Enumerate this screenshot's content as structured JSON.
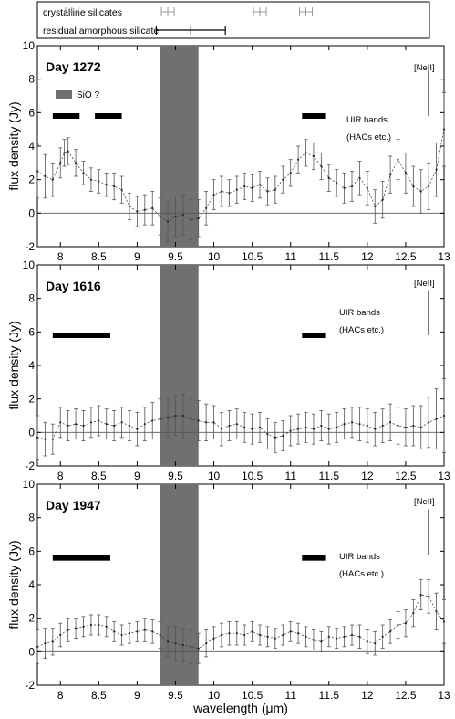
{
  "legend": {
    "crystalline_label": "crystalline silicates",
    "amorphous_label": "residual amorphous silicate",
    "crystalline_color": "#999999",
    "amorphous_color": "#000000",
    "crystalline_positions_um": [
      8.15,
      9.4,
      10.6,
      11.2
    ],
    "amorphous_range_um": [
      9.25,
      10.15
    ],
    "amorphous_center_um": 9.7
  },
  "annotations": {
    "sio_label": "SiO ?",
    "uir_label_line1": "UIR bands",
    "uir_label_line2": "(HACs etc.)",
    "neii_label": "[NeII]"
  },
  "chart_data": {
    "type": "line",
    "xlabel": "wavelength (μm)",
    "ylabel": "flux density (Jy)",
    "xlim": [
      7.7,
      13.0
    ],
    "xticks": [
      "8",
      "8.5",
      "9",
      "9.5",
      "10",
      "10.5",
      "11",
      "11.5",
      "12",
      "12.5",
      "13"
    ],
    "xtick_values": [
      8,
      8.5,
      9,
      9.5,
      10,
      10.5,
      11,
      11.5,
      12,
      12.5,
      13
    ],
    "shaded_band_um": [
      9.3,
      9.8
    ],
    "shaded_color": "#707070",
    "neii_um": 12.8,
    "panels": [
      {
        "label": "Day 1272",
        "ylim": [
          -2,
          10
        ],
        "yticks": [
          "-2",
          "0",
          "2",
          "4",
          "6",
          "8",
          "10"
        ],
        "ytick_values": [
          -2,
          0,
          2,
          4,
          6,
          8,
          10
        ],
        "show_sio_legend": true,
        "uir_bars_um": [
          [
            7.9,
            8.25
          ],
          [
            8.45,
            8.8
          ],
          [
            11.15,
            11.45
          ]
        ],
        "uir_bar_y": 5.8,
        "x": [
          7.7,
          7.8,
          7.9,
          8.0,
          8.05,
          8.1,
          8.2,
          8.3,
          8.4,
          8.5,
          8.6,
          8.7,
          8.8,
          8.9,
          9.0,
          9.1,
          9.2,
          9.3,
          9.4,
          9.5,
          9.6,
          9.7,
          9.8,
          9.9,
          10.0,
          10.1,
          10.2,
          10.3,
          10.4,
          10.5,
          10.6,
          10.7,
          10.8,
          10.9,
          11.0,
          11.1,
          11.2,
          11.3,
          11.4,
          11.5,
          11.6,
          11.7,
          11.8,
          11.9,
          12.0,
          12.1,
          12.2,
          12.3,
          12.4,
          12.5,
          12.6,
          12.7,
          12.8,
          12.9,
          13.0
        ],
        "y": [
          2.5,
          2.2,
          2.0,
          3.0,
          3.6,
          3.7,
          3.0,
          2.4,
          2.0,
          1.9,
          1.7,
          1.6,
          1.4,
          0.4,
          0.1,
          0.2,
          0.3,
          -0.2,
          -0.5,
          -0.2,
          -0.1,
          -0.4,
          -0.3,
          0.3,
          1.1,
          1.3,
          1.2,
          1.4,
          1.6,
          1.5,
          1.7,
          1.3,
          1.4,
          2.0,
          2.4,
          3.2,
          3.6,
          3.4,
          2.8,
          2.1,
          1.8,
          1.5,
          1.6,
          2.1,
          1.5,
          0.4,
          0.8,
          2.3,
          3.2,
          2.4,
          1.6,
          1.3,
          1.6,
          2.6,
          5.0
        ],
        "err": [
          1.6,
          1.3,
          1.0,
          0.9,
          0.8,
          0.8,
          0.8,
          0.7,
          0.7,
          0.7,
          0.7,
          0.8,
          0.8,
          0.8,
          0.9,
          0.9,
          1.0,
          1.1,
          1.2,
          1.2,
          1.2,
          1.2,
          1.1,
          1.0,
          0.9,
          0.9,
          0.8,
          0.8,
          0.8,
          0.8,
          0.8,
          0.8,
          0.8,
          0.8,
          0.8,
          0.8,
          0.8,
          0.8,
          0.8,
          0.8,
          0.8,
          0.9,
          0.9,
          1.0,
          1.0,
          1.0,
          1.1,
          1.1,
          1.2,
          1.2,
          1.2,
          1.3,
          1.4,
          1.6,
          2.2
        ]
      },
      {
        "label": "Day 1616",
        "ylim": [
          -2,
          10
        ],
        "yticks": [
          "-2",
          "0",
          "2",
          "4",
          "6",
          "8",
          "10"
        ],
        "ytick_values": [
          -2,
          0,
          2,
          4,
          6,
          8,
          10
        ],
        "show_sio_legend": false,
        "uir_bars_um": [
          [
            7.9,
            8.65
          ],
          [
            11.15,
            11.45
          ]
        ],
        "uir_bar_y": 5.8,
        "x": [
          7.7,
          7.8,
          7.9,
          8.0,
          8.1,
          8.2,
          8.3,
          8.4,
          8.5,
          8.6,
          8.7,
          8.8,
          8.9,
          9.0,
          9.1,
          9.2,
          9.3,
          9.4,
          9.5,
          9.6,
          9.7,
          9.8,
          9.9,
          10.0,
          10.1,
          10.2,
          10.3,
          10.4,
          10.5,
          10.6,
          10.7,
          10.8,
          10.9,
          11.0,
          11.1,
          11.2,
          11.3,
          11.4,
          11.5,
          11.6,
          11.7,
          11.8,
          11.9,
          12.0,
          12.1,
          12.2,
          12.3,
          12.4,
          12.5,
          12.6,
          12.7,
          12.8,
          12.9,
          13.0
        ],
        "y": [
          -0.3,
          -0.4,
          -0.4,
          0.6,
          0.4,
          0.5,
          0.4,
          0.6,
          0.7,
          0.5,
          0.4,
          0.6,
          0.4,
          0.2,
          0.5,
          0.7,
          0.8,
          0.9,
          1.0,
          1.0,
          0.8,
          0.7,
          0.6,
          0.6,
          0.2,
          0.4,
          0.5,
          0.3,
          0.2,
          0.3,
          -0.1,
          -0.3,
          -0.2,
          0.1,
          0.2,
          0.3,
          0.2,
          0.4,
          0.2,
          0.3,
          0.5,
          0.6,
          0.5,
          0.4,
          0.2,
          0.4,
          0.6,
          0.4,
          0.3,
          0.4,
          0.3,
          0.6,
          0.8,
          1.0
        ],
        "err": [
          1.3,
          1.0,
          0.9,
          0.9,
          0.9,
          0.9,
          0.9,
          0.9,
          0.9,
          0.9,
          0.9,
          0.9,
          0.9,
          1.0,
          1.0,
          1.1,
          1.2,
          1.2,
          1.2,
          1.3,
          1.2,
          1.2,
          1.1,
          1.0,
          1.0,
          0.9,
          0.9,
          0.9,
          0.9,
          0.9,
          0.9,
          0.9,
          0.9,
          0.9,
          0.9,
          0.9,
          0.9,
          0.9,
          0.9,
          0.9,
          0.9,
          0.9,
          1.0,
          1.0,
          1.0,
          1.0,
          1.1,
          1.1,
          1.1,
          1.2,
          1.3,
          1.5,
          1.8,
          2.2
        ]
      },
      {
        "label": "Day 1947",
        "ylim": [
          -2,
          10
        ],
        "yticks": [
          "-2",
          "0",
          "2",
          "4",
          "6",
          "8",
          "10"
        ],
        "ytick_values": [
          -2,
          0,
          2,
          4,
          6,
          8,
          10
        ],
        "show_sio_legend": false,
        "uir_bars_um": [
          [
            7.9,
            8.65
          ],
          [
            11.15,
            11.45
          ]
        ],
        "uir_bar_y": 5.6,
        "x": [
          7.7,
          7.8,
          7.9,
          8.0,
          8.1,
          8.2,
          8.3,
          8.4,
          8.5,
          8.6,
          8.7,
          8.8,
          8.9,
          9.0,
          9.1,
          9.2,
          9.3,
          9.4,
          9.5,
          9.6,
          9.7,
          9.8,
          9.9,
          10.0,
          10.1,
          10.2,
          10.3,
          10.4,
          10.5,
          10.6,
          10.7,
          10.8,
          10.9,
          11.0,
          11.1,
          11.2,
          11.3,
          11.4,
          11.5,
          11.6,
          11.7,
          11.8,
          11.9,
          12.0,
          12.1,
          12.2,
          12.3,
          12.4,
          12.5,
          12.6,
          12.7,
          12.8,
          12.9,
          13.0
        ],
        "y": [
          0.3,
          0.5,
          0.6,
          1.0,
          1.3,
          1.4,
          1.5,
          1.6,
          1.6,
          1.5,
          1.2,
          1.0,
          1.1,
          1.2,
          1.3,
          1.2,
          1.0,
          0.6,
          0.5,
          0.4,
          0.3,
          0.2,
          0.5,
          0.8,
          1.0,
          1.1,
          1.1,
          1.0,
          1.2,
          1.0,
          0.9,
          0.8,
          1.0,
          1.2,
          1.1,
          0.9,
          0.7,
          0.6,
          0.9,
          0.8,
          0.9,
          1.0,
          0.9,
          0.6,
          0.5,
          0.9,
          1.2,
          1.6,
          1.7,
          2.3,
          3.4,
          3.3,
          2.4,
          1.8
        ],
        "err": [
          1.0,
          0.9,
          0.8,
          0.7,
          0.7,
          0.6,
          0.6,
          0.6,
          0.6,
          0.6,
          0.6,
          0.6,
          0.6,
          0.6,
          0.7,
          0.7,
          0.8,
          0.9,
          1.0,
          1.0,
          1.0,
          0.9,
          0.8,
          0.7,
          0.7,
          0.7,
          0.7,
          0.6,
          0.6,
          0.6,
          0.6,
          0.6,
          0.6,
          0.6,
          0.6,
          0.6,
          0.6,
          0.6,
          0.6,
          0.6,
          0.6,
          0.6,
          0.7,
          0.7,
          0.7,
          0.7,
          0.7,
          0.8,
          0.8,
          0.8,
          0.9,
          1.0,
          1.1,
          1.3
        ]
      }
    ]
  }
}
